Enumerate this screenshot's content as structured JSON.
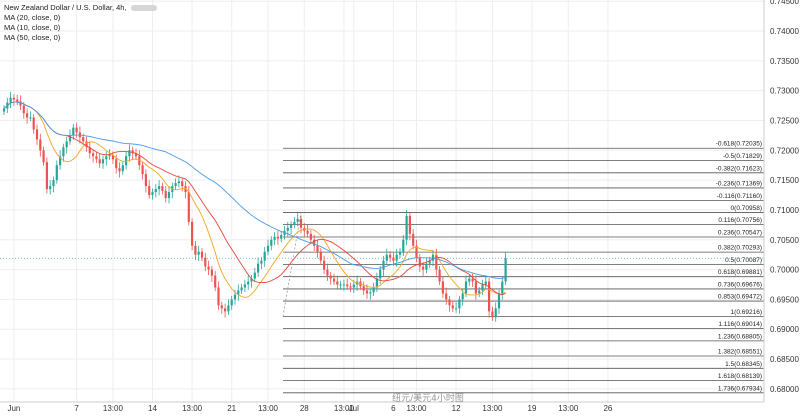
{
  "legend": {
    "title": "New Zealand Dollar / U.S. Dollar, 4h,",
    "ma": [
      {
        "label": "MA (20, close, 0)",
        "color": "#e8463c"
      },
      {
        "label": "MA (10, close, 0)",
        "color": "#f5a623"
      },
      {
        "label": "MA (50, close, 0)",
        "color": "#4a9be8"
      }
    ]
  },
  "watermark": "纽元/美元4小时图",
  "colors": {
    "up": "#26a69a",
    "down": "#ef5350",
    "ma20": "#e8463c",
    "ma10": "#f5a623",
    "ma50": "#4a9be8",
    "fib": "#555555",
    "grid": "#eeeeee",
    "price_line": "#4ab8b8"
  },
  "chart_data": {
    "type": "candlestick",
    "symbol": "NZD/USD",
    "timeframe": "4h",
    "ylim": [
      0.6778,
      0.7452
    ],
    "y_ticks": [
      0.745,
      0.74,
      0.735,
      0.73,
      0.725,
      0.72,
      0.715,
      0.71,
      0.705,
      0.7,
      0.695,
      0.69,
      0.685,
      0.68
    ],
    "y_tick_labels": [
      "0.74500",
      "0.74000",
      "0.73500",
      "0.73000",
      "0.72500",
      "0.72000",
      "0.71500",
      "0.71000",
      "0.70500",
      "0.70000",
      "0.69500",
      "0.69000",
      "0.68500",
      "0.68000"
    ],
    "x_ticks": [
      {
        "i": 3,
        "label": "Jun"
      },
      {
        "i": 22,
        "label": "7"
      },
      {
        "i": 33,
        "label": "13:00"
      },
      {
        "i": 45,
        "label": "14"
      },
      {
        "i": 57,
        "label": "13:00"
      },
      {
        "i": 69,
        "label": "21"
      },
      {
        "i": 80,
        "label": "13:00"
      },
      {
        "i": 91,
        "label": "28"
      },
      {
        "i": 103,
        "label": "13:00"
      },
      {
        "i": 106,
        "label": "Jul"
      },
      {
        "i": 118,
        "label": "6"
      },
      {
        "i": 125,
        "label": "13:00"
      },
      {
        "i": 137,
        "label": "12"
      },
      {
        "i": 148,
        "label": "13:00"
      },
      {
        "i": 160,
        "label": "19"
      },
      {
        "i": 171,
        "label": "13:00"
      },
      {
        "i": 183,
        "label": "26"
      }
    ],
    "closes": [
      0.727,
      0.728,
      0.7288,
      0.7285,
      0.7282,
      0.7275,
      0.7262,
      0.7255,
      0.7255,
      0.7235,
      0.7218,
      0.72,
      0.718,
      0.7135,
      0.714,
      0.715,
      0.7175,
      0.719,
      0.7205,
      0.7215,
      0.7225,
      0.7238,
      0.723,
      0.7222,
      0.7215,
      0.7205,
      0.7195,
      0.719,
      0.7185,
      0.7178,
      0.7185,
      0.719,
      0.7192,
      0.7185,
      0.717,
      0.7165,
      0.7175,
      0.719,
      0.72,
      0.7195,
      0.719,
      0.7175,
      0.716,
      0.714,
      0.7125,
      0.713,
      0.7135,
      0.714,
      0.7132,
      0.712,
      0.713,
      0.714,
      0.7145,
      0.7148,
      0.714,
      0.713,
      0.708,
      0.704,
      0.7025,
      0.703,
      0.702,
      0.7005,
      0.7,
      0.699,
      0.697,
      0.694,
      0.6935,
      0.693,
      0.694,
      0.695,
      0.6958,
      0.6965,
      0.697,
      0.6975,
      0.698,
      0.6985,
      0.6995,
      0.701,
      0.7015,
      0.703,
      0.704,
      0.705,
      0.7055,
      0.7052,
      0.7058,
      0.7065,
      0.707,
      0.7075,
      0.708,
      0.7085,
      0.707,
      0.7065,
      0.706,
      0.705,
      0.704,
      0.703,
      0.7015,
      0.7,
      0.699,
      0.6985,
      0.698,
      0.6975,
      0.6975,
      0.6975,
      0.6972,
      0.697,
      0.6975,
      0.698,
      0.6972,
      0.6965,
      0.696,
      0.6962,
      0.697,
      0.6985,
      0.7,
      0.7015,
      0.7025,
      0.702,
      0.7015,
      0.7025,
      0.703,
      0.705,
      0.709,
      0.706,
      0.704,
      0.702,
      0.7005,
      0.7,
      0.701,
      0.7015,
      0.7025,
      0.7,
      0.698,
      0.696,
      0.695,
      0.694,
      0.6935,
      0.6935,
      0.695,
      0.696,
      0.698,
      0.6985,
      0.698,
      0.696,
      0.6965,
      0.6975,
      0.698,
      0.693,
      0.692,
      0.6935,
      0.696,
      0.698,
      0.7019
    ]
  }
}
